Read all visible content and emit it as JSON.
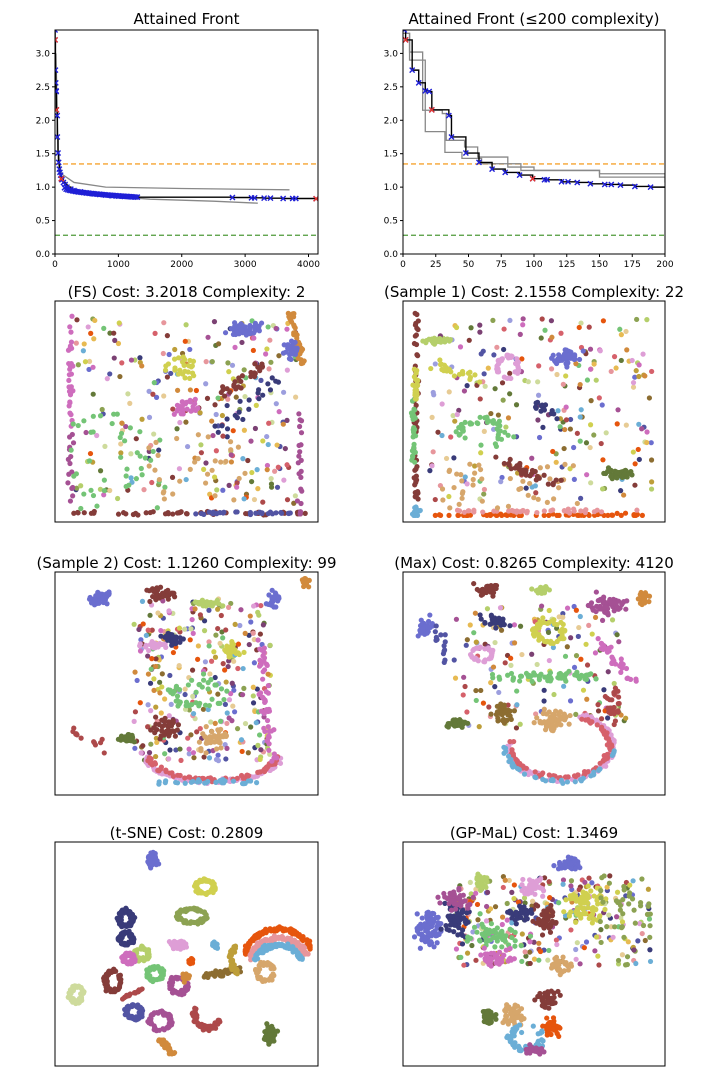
{
  "chart_data": [
    {
      "type": "line",
      "title": "Attained Front",
      "xlim": [
        0,
        4150
      ],
      "ylim": [
        0,
        3.35
      ],
      "xticks": [
        "0",
        "1000",
        "2000",
        "3000",
        "4000"
      ],
      "yticks": [
        "0.0",
        "0.5",
        "1.0",
        "1.5",
        "2.0",
        "2.5",
        "3.0"
      ],
      "xtick_values": [
        0,
        1000,
        2000,
        3000,
        4000
      ],
      "ytick_values": [
        0,
        0.5,
        1,
        1.5,
        2,
        2.5,
        3
      ],
      "reference_lines": [
        {
          "y": 1.3469,
          "color": "#f5a331",
          "style": "dashed"
        },
        {
          "y": 0.2809,
          "color": "#4e9a3a",
          "style": "dashed"
        }
      ],
      "front": [
        [
          1,
          3.35
        ],
        [
          2,
          3.2018
        ],
        [
          7,
          2.75
        ],
        [
          12,
          2.56
        ],
        [
          17,
          2.44
        ],
        [
          20,
          2.43
        ],
        [
          22,
          2.1558
        ],
        [
          35,
          2.07
        ],
        [
          37,
          1.75
        ],
        [
          48,
          1.51
        ],
        [
          58,
          1.37
        ],
        [
          68,
          1.27
        ],
        [
          78,
          1.22
        ],
        [
          89,
          1.18
        ],
        [
          99,
          1.126
        ],
        [
          110,
          1.11
        ],
        [
          133,
          1.07
        ],
        [
          159,
          1.04
        ],
        [
          189,
          1.0
        ],
        [
          250,
          0.97
        ],
        [
          300,
          0.95
        ],
        [
          400,
          0.93
        ],
        [
          500,
          0.915
        ],
        [
          600,
          0.9
        ],
        [
          700,
          0.89
        ],
        [
          800,
          0.88
        ],
        [
          900,
          0.87
        ],
        [
          1000,
          0.865
        ],
        [
          1100,
          0.86
        ],
        [
          1200,
          0.855
        ],
        [
          1300,
          0.85
        ],
        [
          2800,
          0.845
        ],
        [
          3100,
          0.84
        ],
        [
          3150,
          0.84
        ],
        [
          3300,
          0.835
        ],
        [
          3400,
          0.835
        ],
        [
          3600,
          0.83
        ],
        [
          3750,
          0.83
        ],
        [
          3800,
          0.83
        ],
        [
          4120,
          0.8265
        ]
      ],
      "highlighted": [
        [
          2,
          3.2018
        ],
        [
          22,
          2.1558
        ],
        [
          99,
          1.126
        ],
        [
          4120,
          0.8265
        ]
      ],
      "other_runs": [
        [
          [
            15,
            3.0
          ],
          [
            50,
            1.5
          ],
          [
            100,
            1.2
          ],
          [
            300,
            1.07
          ],
          [
            800,
            1.0
          ],
          [
            2000,
            0.98
          ],
          [
            3700,
            0.96
          ]
        ],
        [
          [
            15,
            2.7
          ],
          [
            50,
            1.4
          ],
          [
            100,
            1.1
          ],
          [
            300,
            0.95
          ],
          [
            800,
            0.87
          ],
          [
            1500,
            0.82
          ],
          [
            2500,
            0.79
          ],
          [
            3200,
            0.76
          ]
        ]
      ],
      "colors": {
        "front": "#000000",
        "markers": "#1f1fd6",
        "highlight": "#e8372c",
        "other_runs": "#888888"
      }
    },
    {
      "type": "line",
      "title": "Attained Front (≤200 complexity)",
      "xlim": [
        0,
        200
      ],
      "ylim": [
        0,
        3.35
      ],
      "xticks": [
        "0",
        "25",
        "50",
        "75",
        "100",
        "125",
        "150",
        "175",
        "200"
      ],
      "yticks": [
        "0.0",
        "0.5",
        "1.0",
        "1.5",
        "2.0",
        "2.5",
        "3.0"
      ],
      "xtick_values": [
        0,
        25,
        50,
        75,
        100,
        125,
        150,
        175,
        200
      ],
      "ytick_values": [
        0,
        0.5,
        1,
        1.5,
        2,
        2.5,
        3
      ],
      "reference_lines": [
        {
          "y": 1.3469,
          "color": "#f5a331",
          "style": "dashed"
        },
        {
          "y": 0.2809,
          "color": "#4e9a3a",
          "style": "dashed"
        }
      ],
      "front": [
        [
          1,
          3.35
        ],
        [
          2,
          3.2018
        ],
        [
          7,
          2.75
        ],
        [
          12,
          2.56
        ],
        [
          17,
          2.44
        ],
        [
          20,
          2.43
        ],
        [
          22,
          2.1558
        ],
        [
          35,
          2.07
        ],
        [
          37,
          1.75
        ],
        [
          48,
          1.51
        ],
        [
          58,
          1.37
        ],
        [
          68,
          1.27
        ],
        [
          78,
          1.22
        ],
        [
          89,
          1.18
        ],
        [
          99,
          1.126
        ],
        [
          108,
          1.11
        ],
        [
          110,
          1.11
        ],
        [
          121,
          1.08
        ],
        [
          126,
          1.08
        ],
        [
          133,
          1.07
        ],
        [
          143,
          1.05
        ],
        [
          154,
          1.04
        ],
        [
          159,
          1.04
        ],
        [
          166,
          1.03
        ],
        [
          177,
          1.01
        ],
        [
          189,
          1.0
        ],
        [
          200,
          1.0
        ]
      ],
      "highlighted": [
        [
          2,
          3.2018
        ],
        [
          22,
          2.1558
        ],
        [
          99,
          1.126
        ]
      ],
      "other_runs": [
        [
          [
            0,
            3.3
          ],
          [
            5,
            3.02
          ],
          [
            15,
            2.15
          ],
          [
            30,
            2.1
          ],
          [
            33,
            1.7
          ],
          [
            47,
            1.6
          ],
          [
            57,
            1.45
          ],
          [
            80,
            1.3
          ],
          [
            100,
            1.25
          ],
          [
            150,
            1.2
          ],
          [
            200,
            1.14
          ]
        ],
        [
          [
            0,
            3.3
          ],
          [
            5,
            2.9
          ],
          [
            17,
            1.83
          ],
          [
            32,
            1.52
          ],
          [
            45,
            1.43
          ],
          [
            60,
            1.35
          ],
          [
            90,
            1.25
          ],
          [
            150,
            1.15
          ],
          [
            200,
            1.07
          ]
        ]
      ],
      "colors": {
        "front": "#000000",
        "markers": "#1f1fd6",
        "highlight": "#e8372c",
        "other_runs": "#888888"
      }
    },
    {
      "type": "scatter",
      "title": "(FS) Cost: 3.2018 Complexity: 2"
    },
    {
      "type": "scatter",
      "title": "(Sample 1) Cost: 2.1558 Complexity: 22"
    },
    {
      "type": "scatter",
      "title": "(Sample 2) Cost: 1.1260 Complexity: 99"
    },
    {
      "type": "scatter",
      "title": "(Max) Cost: 0.8265 Complexity: 4120"
    },
    {
      "type": "scatter",
      "title": "(t-SNE) Cost: 0.2809"
    },
    {
      "type": "scatter",
      "title": "(GP-MaL) Cost: 1.3469"
    }
  ]
}
